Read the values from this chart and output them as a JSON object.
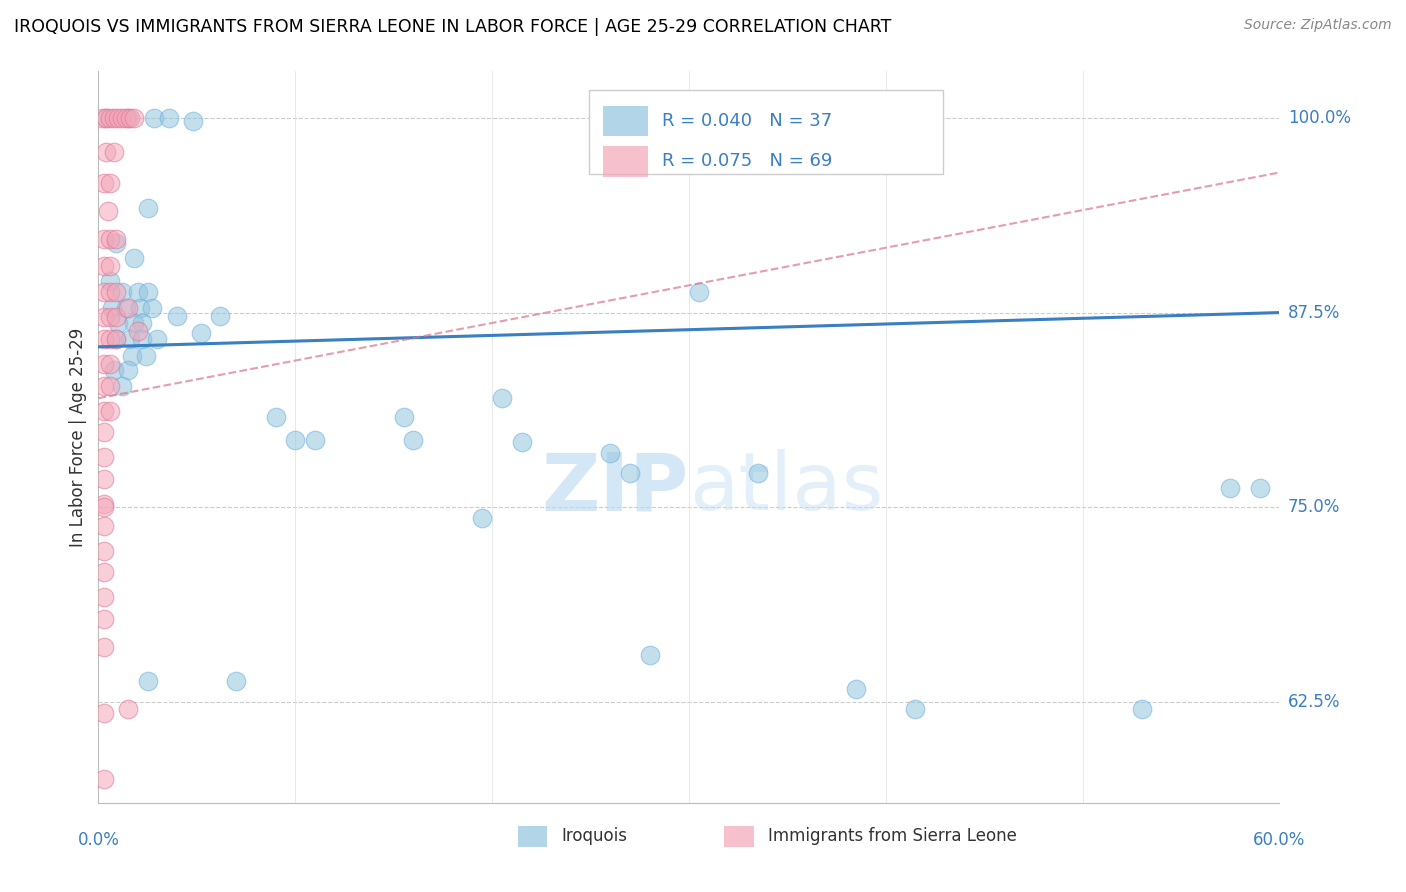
{
  "title": "IROQUOIS VS IMMIGRANTS FROM SIERRA LEONE IN LABOR FORCE | AGE 25-29 CORRELATION CHART",
  "source": "Source: ZipAtlas.com",
  "ylabel": "In Labor Force | Age 25-29",
  "ytick_labels": [
    "62.5%",
    "75.0%",
    "87.5%",
    "100.0%"
  ],
  "ytick_values": [
    0.625,
    0.75,
    0.875,
    1.0
  ],
  "xtick_labels": [
    "0.0%",
    "60.0%"
  ],
  "xlim": [
    0.0,
    0.6
  ],
  "ylim": [
    0.56,
    1.03
  ],
  "legend_blue_r": "R = 0.040",
  "legend_blue_n": "N = 37",
  "legend_pink_r": "R = 0.075",
  "legend_pink_n": "N = 69",
  "legend_blue_label": "Iroquois",
  "legend_pink_label": "Immigrants from Sierra Leone",
  "watermark": "ZIPatlas",
  "blue_color": "#92c5de",
  "pink_color": "#f4a6b8",
  "blue_line_color": "#3a7fc1",
  "pink_line_color": "#d9748a",
  "blue_scatter": [
    [
      0.004,
      1.0
    ],
    [
      0.015,
      1.0
    ],
    [
      0.028,
      1.0
    ],
    [
      0.036,
      1.0
    ],
    [
      0.048,
      0.998
    ],
    [
      0.025,
      0.942
    ],
    [
      0.009,
      0.92
    ],
    [
      0.018,
      0.91
    ],
    [
      0.006,
      0.895
    ],
    [
      0.012,
      0.888
    ],
    [
      0.02,
      0.888
    ],
    [
      0.025,
      0.888
    ],
    [
      0.007,
      0.878
    ],
    [
      0.014,
      0.878
    ],
    [
      0.021,
      0.878
    ],
    [
      0.027,
      0.878
    ],
    [
      0.01,
      0.868
    ],
    [
      0.018,
      0.868
    ],
    [
      0.022,
      0.868
    ],
    [
      0.009,
      0.858
    ],
    [
      0.016,
      0.858
    ],
    [
      0.022,
      0.858
    ],
    [
      0.03,
      0.858
    ],
    [
      0.017,
      0.847
    ],
    [
      0.024,
      0.847
    ],
    [
      0.008,
      0.838
    ],
    [
      0.015,
      0.838
    ],
    [
      0.012,
      0.828
    ],
    [
      0.04,
      0.873
    ],
    [
      0.052,
      0.862
    ],
    [
      0.062,
      0.873
    ],
    [
      0.09,
      0.808
    ],
    [
      0.1,
      0.793
    ],
    [
      0.11,
      0.793
    ],
    [
      0.155,
      0.808
    ],
    [
      0.16,
      0.793
    ],
    [
      0.205,
      0.82
    ],
    [
      0.215,
      0.792
    ],
    [
      0.26,
      0.785
    ],
    [
      0.27,
      0.772
    ],
    [
      0.305,
      0.888
    ],
    [
      0.335,
      0.772
    ],
    [
      0.385,
      0.633
    ],
    [
      0.415,
      0.62
    ],
    [
      0.28,
      0.655
    ],
    [
      0.195,
      0.743
    ],
    [
      0.07,
      0.638
    ],
    [
      0.025,
      0.638
    ],
    [
      0.53,
      0.62
    ],
    [
      0.575,
      0.762
    ],
    [
      0.59,
      0.762
    ]
  ],
  "pink_scatter": [
    [
      0.002,
      1.0
    ],
    [
      0.004,
      1.0
    ],
    [
      0.006,
      1.0
    ],
    [
      0.008,
      1.0
    ],
    [
      0.01,
      1.0
    ],
    [
      0.012,
      1.0
    ],
    [
      0.014,
      1.0
    ],
    [
      0.016,
      1.0
    ],
    [
      0.018,
      1.0
    ],
    [
      0.004,
      0.978
    ],
    [
      0.008,
      0.978
    ],
    [
      0.003,
      0.958
    ],
    [
      0.006,
      0.958
    ],
    [
      0.005,
      0.94
    ],
    [
      0.003,
      0.922
    ],
    [
      0.006,
      0.922
    ],
    [
      0.009,
      0.922
    ],
    [
      0.003,
      0.905
    ],
    [
      0.006,
      0.905
    ],
    [
      0.003,
      0.888
    ],
    [
      0.006,
      0.888
    ],
    [
      0.009,
      0.888
    ],
    [
      0.003,
      0.872
    ],
    [
      0.006,
      0.872
    ],
    [
      0.009,
      0.872
    ],
    [
      0.003,
      0.858
    ],
    [
      0.006,
      0.858
    ],
    [
      0.009,
      0.858
    ],
    [
      0.003,
      0.842
    ],
    [
      0.006,
      0.842
    ],
    [
      0.003,
      0.828
    ],
    [
      0.006,
      0.828
    ],
    [
      0.003,
      0.812
    ],
    [
      0.006,
      0.812
    ],
    [
      0.003,
      0.798
    ],
    [
      0.003,
      0.782
    ],
    [
      0.003,
      0.768
    ],
    [
      0.003,
      0.752
    ],
    [
      0.003,
      0.738
    ],
    [
      0.003,
      0.722
    ],
    [
      0.003,
      0.708
    ],
    [
      0.003,
      0.692
    ],
    [
      0.003,
      0.678
    ],
    [
      0.015,
      0.878
    ],
    [
      0.02,
      0.863
    ],
    [
      0.003,
      0.75
    ],
    [
      0.003,
      0.66
    ],
    [
      0.003,
      0.618
    ],
    [
      0.015,
      0.62
    ],
    [
      0.003,
      0.575
    ]
  ],
  "blue_trend_x": [
    0.0,
    0.6
  ],
  "blue_trend_y": [
    0.853,
    0.875
  ],
  "pink_trend_x": [
    0.0,
    0.6
  ],
  "pink_trend_y": [
    0.82,
    0.965
  ]
}
